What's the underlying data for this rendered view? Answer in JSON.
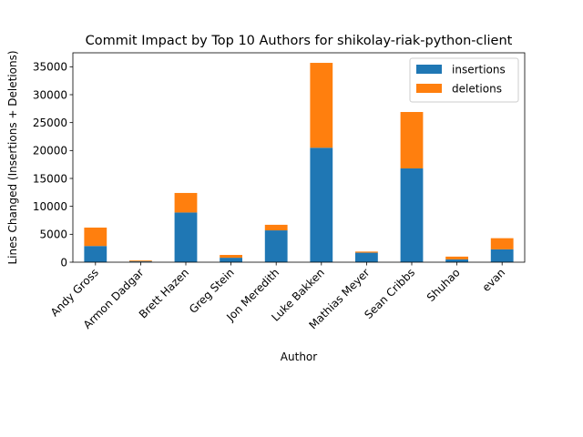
{
  "chart_data": {
    "type": "bar",
    "stacked": true,
    "title": "Commit Impact by Top 10 Authors for shikolay-riak-python-client",
    "xlabel": "Author",
    "ylabel": "Lines Changed (Insertions + Deletions)",
    "categories": [
      "Andy Gross",
      "Armon Dadgar",
      "Brett Hazen",
      "Greg Stein",
      "Jon Meredith",
      "Luke Bakken",
      "Mathias Meyer",
      "Sean Cribbs",
      "Shuhao",
      "evan"
    ],
    "series": [
      {
        "name": "insertions",
        "color": "#1f77b4",
        "values": [
          2900,
          150,
          8900,
          800,
          5700,
          20500,
          1700,
          16800,
          500,
          2300
        ]
      },
      {
        "name": "deletions",
        "color": "#ff7f0e",
        "values": [
          3300,
          150,
          3500,
          500,
          1000,
          15200,
          200,
          10100,
          500,
          2000
        ]
      }
    ],
    "ylim": [
      0,
      37500
    ],
    "yticks": [
      0,
      5000,
      10000,
      15000,
      20000,
      25000,
      30000,
      35000
    ],
    "grid": false,
    "legend": "top-right"
  }
}
